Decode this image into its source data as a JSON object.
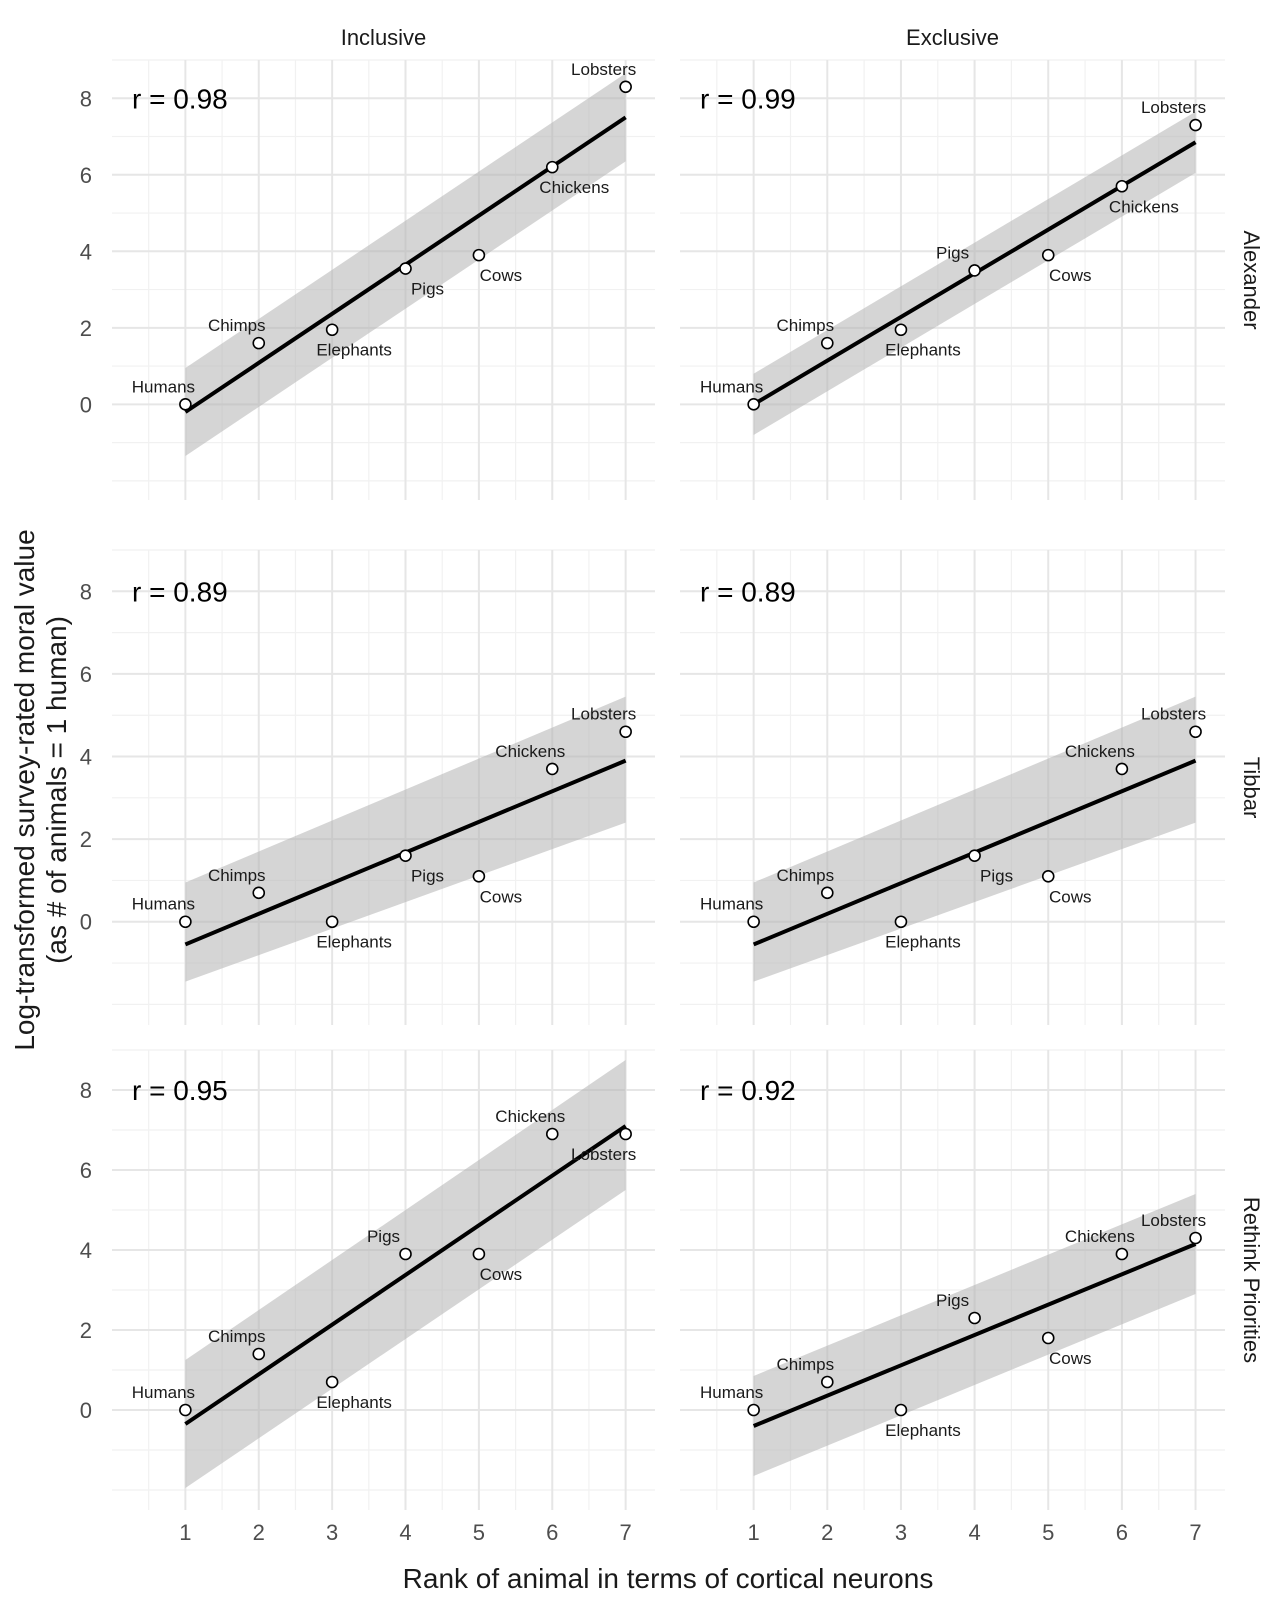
{
  "chart_data": {
    "type": "scatter",
    "xlabel": "Rank of animal in terms of cortical neurons",
    "ylabel_line1": "Log-transformed survey-rated moral value",
    "ylabel_line2": "(as # of animals = 1 human)",
    "columns": [
      "Inclusive",
      "Exclusive"
    ],
    "rows": [
      "Alexander",
      "Tibbar",
      "Rethink Priorities"
    ],
    "x_ticks": [
      1,
      2,
      3,
      4,
      5,
      6,
      7
    ],
    "y_ticks": [
      0,
      2,
      4,
      6,
      8
    ],
    "xlim": [
      0,
      7.4
    ],
    "ylim": [
      -2.5,
      9
    ],
    "animals": [
      "Humans",
      "Chimps",
      "Elephants",
      "Pigs",
      "Cows",
      "Chickens",
      "Lobsters"
    ],
    "panels": [
      {
        "row": "Alexander",
        "column": "Inclusive",
        "r_label": "r = 0.98",
        "y": [
          0,
          1.6,
          1.95,
          3.55,
          3.9,
          6.2,
          8.3
        ],
        "fit": [
          -0.2,
          7.5
        ],
        "band_lo": [
          -1.35,
          6.35
        ],
        "band_hi": [
          0.95,
          8.65
        ],
        "label_pos": [
          "above-left",
          "above",
          "below-right",
          "below-right",
          "below-right",
          "below-right",
          "above-left"
        ]
      },
      {
        "row": "Alexander",
        "column": "Exclusive",
        "r_label": "r = 0.99",
        "y": [
          0,
          1.6,
          1.95,
          3.5,
          3.9,
          5.7,
          7.3
        ],
        "fit": [
          0,
          6.85
        ],
        "band_lo": [
          -0.8,
          6.05
        ],
        "band_hi": [
          0.8,
          7.65
        ],
        "label_pos": [
          "above-left",
          "above",
          "below-right",
          "above-left",
          "below-right",
          "below-right",
          "above-left"
        ]
      },
      {
        "row": "Tibbar",
        "column": "Inclusive",
        "r_label": "r = 0.89",
        "y": [
          0,
          0.7,
          0,
          1.6,
          1.1,
          3.7,
          4.6
        ],
        "fit": [
          -0.55,
          3.9
        ],
        "band_lo": [
          -1.45,
          2.4
        ],
        "band_hi": [
          0.95,
          5.45
        ],
        "label_pos": [
          "above-left",
          "above",
          "below-right",
          "below-right",
          "below-right",
          "above-left",
          "above-left"
        ]
      },
      {
        "row": "Tibbar",
        "column": "Exclusive",
        "r_label": "r = 0.89",
        "y": [
          0,
          0.7,
          0,
          1.6,
          1.1,
          3.7,
          4.6
        ],
        "fit": [
          -0.55,
          3.9
        ],
        "band_lo": [
          -1.45,
          2.4
        ],
        "band_hi": [
          0.95,
          5.45
        ],
        "label_pos": [
          "above-left",
          "above",
          "below-right",
          "below-right",
          "below-right",
          "above-left",
          "above-left"
        ]
      },
      {
        "row": "Rethink Priorities",
        "column": "Inclusive",
        "r_label": "r = 0.95",
        "y": [
          0,
          1.4,
          0.7,
          3.9,
          3.9,
          6.9,
          6.9
        ],
        "fit": [
          -0.35,
          7.1
        ],
        "band_lo": [
          -1.95,
          5.5
        ],
        "band_hi": [
          1.25,
          8.75
        ],
        "label_pos": [
          "above-left",
          "above",
          "below-right",
          "above-left",
          "below-right",
          "above-left",
          "below-left"
        ]
      },
      {
        "row": "Rethink Priorities",
        "column": "Exclusive",
        "r_label": "r = 0.92",
        "y": [
          0,
          0.7,
          0,
          2.3,
          1.8,
          3.9,
          4.3
        ],
        "fit": [
          -0.4,
          4.15
        ],
        "band_lo": [
          -1.65,
          2.9
        ],
        "band_hi": [
          0.85,
          5.4
        ],
        "label_pos": [
          "above-left",
          "above",
          "below-right",
          "above-left",
          "below-right",
          "above-left",
          "above-left"
        ]
      }
    ]
  }
}
